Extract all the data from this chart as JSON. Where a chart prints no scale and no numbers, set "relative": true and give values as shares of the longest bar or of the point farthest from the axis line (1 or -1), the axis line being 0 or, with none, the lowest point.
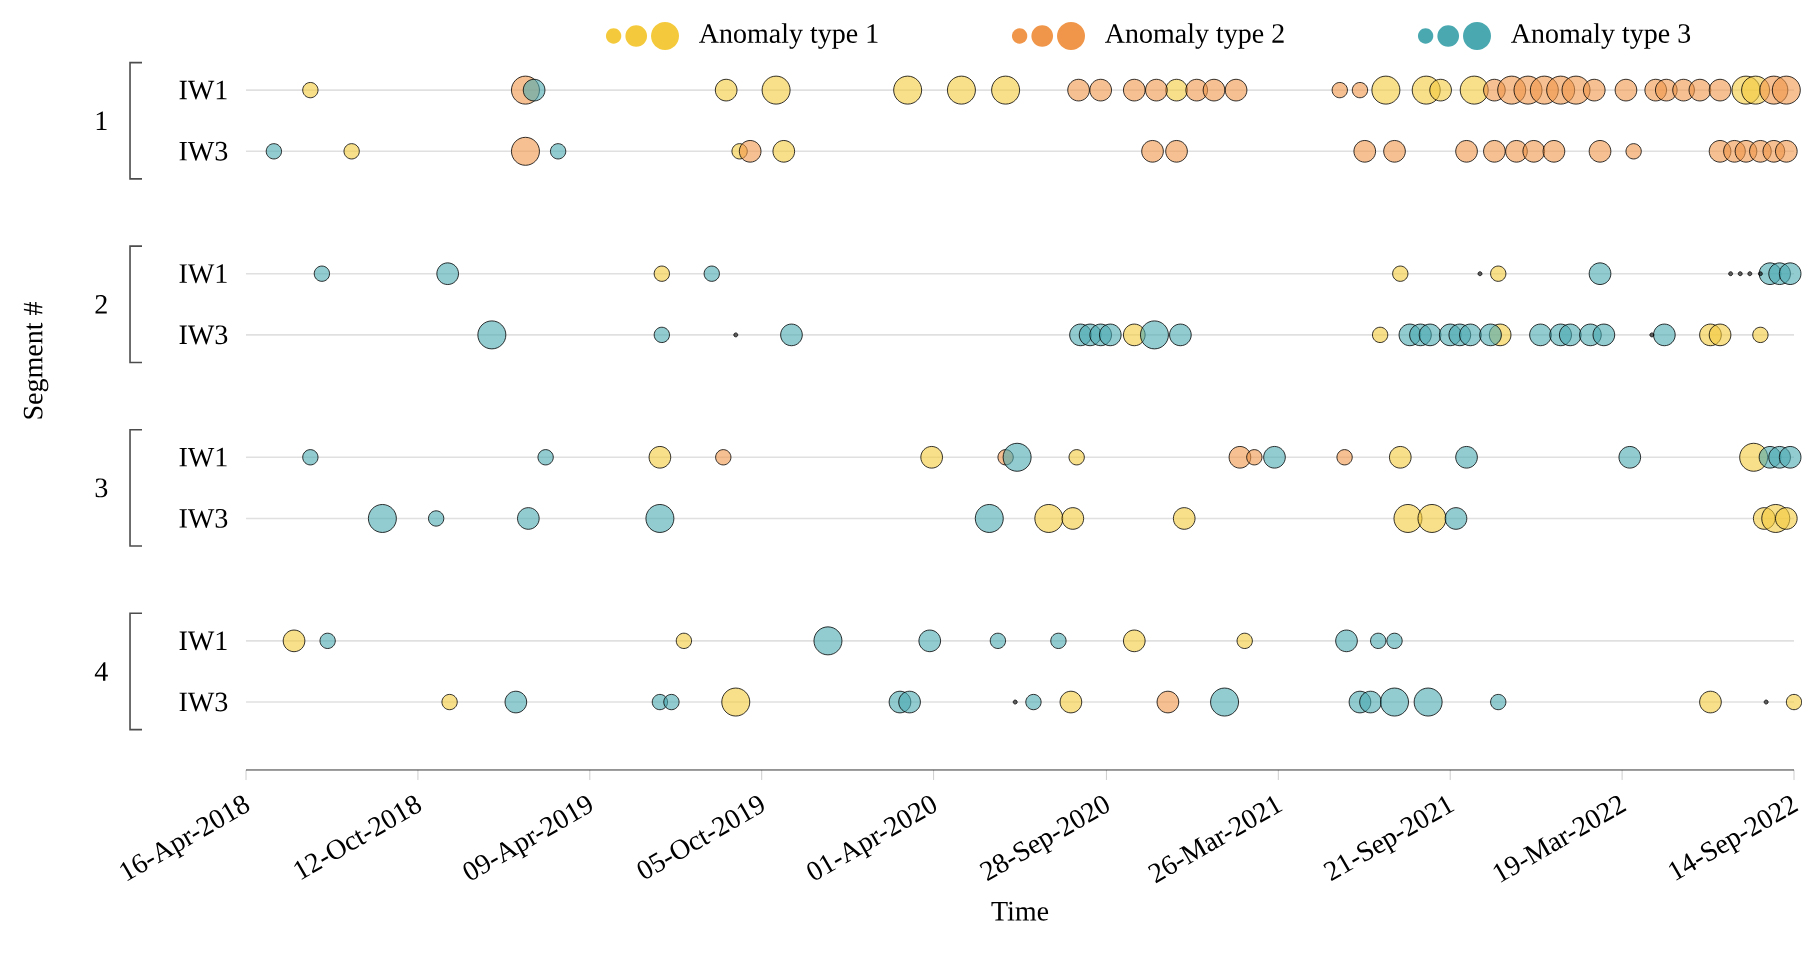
{
  "chart_data": {
    "type": "bubble",
    "relative": true,
    "xlabel": "Time",
    "ylabel": "Segment #",
    "xlim": [
      "2018-04-16",
      "2022-09-14"
    ],
    "xticks": [
      {
        "value": "2018-04-16",
        "label": "16-Apr-2018"
      },
      {
        "value": "2018-10-12",
        "label": "12-Oct-2018"
      },
      {
        "value": "2019-04-09",
        "label": "09-Apr-2019"
      },
      {
        "value": "2019-10-05",
        "label": "05-Oct-2019"
      },
      {
        "value": "2020-04-01",
        "label": "01-Apr-2020"
      },
      {
        "value": "2020-09-28",
        "label": "28-Sep-2020"
      },
      {
        "value": "2021-03-26",
        "label": "26-Mar-2021"
      },
      {
        "value": "2021-09-21",
        "label": "21-Sep-2021"
      },
      {
        "value": "2022-03-19",
        "label": "19-Mar-2022"
      },
      {
        "value": "2022-09-14",
        "label": "14-Sep-2022"
      }
    ],
    "ref_lines": [
      {
        "axis": "y",
        "value": 1,
        "label": "IW1",
        "color": "#e0e0e0"
      },
      {
        "axis": "y",
        "value": 0.9,
        "label": "IW3",
        "color": "#e0e0e0"
      },
      {
        "axis": "y",
        "value": 0.7,
        "label": "IW1",
        "color": "#e0e0e0"
      },
      {
        "axis": "y",
        "value": 0.6,
        "label": "IW3",
        "color": "#e0e0e0"
      },
      {
        "axis": "y",
        "value": 0.4,
        "label": "IW1",
        "color": "#e0e0e0"
      },
      {
        "axis": "y",
        "value": 0.3,
        "label": "IW3",
        "color": "#e0e0e0"
      },
      {
        "axis": "y",
        "value": 0.1,
        "label": "IW1",
        "color": "#e0e0e0"
      },
      {
        "axis": "y",
        "value": 0,
        "label": "IW3",
        "color": "#e0e0e0"
      }
    ],
    "annotations": [
      "1",
      "2",
      "3",
      "4"
    ],
    "legend": "top",
    "series": [
      {
        "name": "Anomaly type 1",
        "color": "#f4ca3c",
        "x": [
          "2018-06-22",
          "2019-08-29",
          "2019-10-20",
          "2020-03-05",
          "2020-04-30",
          "2020-06-15",
          "2020-12-10",
          "2021-07-16",
          "2021-08-27",
          "2021-09-11",
          "2021-10-16",
          "2022-07-26",
          "2022-08-05",
          "2018-08-04",
          "2019-09-12",
          "2019-10-28",
          "2019-06-23",
          "2021-07-31",
          "2021-11-10",
          "2020-10-27",
          "2021-07-10",
          "2021-11-12",
          "2022-06-19",
          "2022-06-29",
          "2022-08-10",
          "2019-06-21",
          "2020-03-30",
          "2020-08-28",
          "2021-07-31",
          "2022-08-03",
          "2020-07-30",
          "2020-08-24",
          "2020-12-18",
          "2021-08-08",
          "2021-09-02",
          "2022-08-14",
          "2022-08-26",
          "2022-09-06",
          "2018-06-05",
          "2019-07-16",
          "2020-10-27",
          "2021-02-19",
          "2018-11-14",
          "2019-09-08",
          "2020-08-22",
          "2022-06-19",
          "2022-09-14"
        ],
        "values": [
          1,
          1,
          1,
          1,
          1,
          1,
          1,
          1,
          1,
          1,
          1,
          1,
          1,
          0.9,
          0.9,
          0.9,
          0.7,
          0.7,
          0.7,
          0.6,
          0.6,
          0.6,
          0.6,
          0.6,
          0.6,
          0.4,
          0.4,
          0.4,
          0.4,
          0.4,
          0.3,
          0.3,
          0.3,
          0.3,
          0.3,
          0.3,
          0.3,
          0.3,
          0.1,
          0.1,
          0.1,
          0.1,
          0,
          0,
          0,
          0,
          0
        ],
        "sizes": [
          0.3,
          0.6,
          1,
          1,
          1,
          1,
          0.6,
          1,
          1,
          0.6,
          1,
          1,
          1,
          0.3,
          0.3,
          0.6,
          0.3,
          0.3,
          0.3,
          0.6,
          0.3,
          0.6,
          0.6,
          0.6,
          0.3,
          0.6,
          0.6,
          0.3,
          0.6,
          1,
          1,
          0.6,
          0.6,
          1,
          1,
          0.6,
          1,
          0.6,
          0.6,
          0.3,
          0.6,
          0.3,
          0.3,
          1,
          0.6,
          0.6,
          0.3
        ]
      },
      {
        "name": "Anomaly type 2",
        "color": "#f0964a",
        "x": [
          "2019-02-01",
          "2020-08-30",
          "2020-09-22",
          "2020-10-27",
          "2020-11-19",
          "2020-12-31",
          "2021-01-18",
          "2021-02-10",
          "2021-05-29",
          "2021-06-19",
          "2021-11-06",
          "2021-11-24",
          "2021-12-11",
          "2021-12-28",
          "2022-01-14",
          "2022-01-30",
          "2022-02-18",
          "2022-03-23",
          "2022-04-23",
          "2022-05-04",
          "2022-05-22",
          "2022-06-08",
          "2022-06-29",
          "2022-08-24",
          "2022-09-06",
          "2019-02-01",
          "2019-09-23",
          "2020-11-15",
          "2020-12-10",
          "2021-06-24",
          "2021-07-25",
          "2021-10-08",
          "2021-11-06",
          "2021-11-29",
          "2021-12-17",
          "2022-01-07",
          "2022-02-24",
          "2022-03-31",
          "2022-06-29",
          "2022-07-14",
          "2022-07-26",
          "2022-08-10",
          "2022-08-24",
          "2022-09-06",
          "2019-08-26",
          "2020-06-15",
          "2021-02-14",
          "2021-03-01",
          "2021-06-03",
          "2020-12-01"
        ],
        "values": [
          1,
          1,
          1,
          1,
          1,
          1,
          1,
          1,
          1,
          1,
          1,
          1,
          1,
          1,
          1,
          1,
          1,
          1,
          1,
          1,
          1,
          1,
          1,
          1,
          1,
          0.9,
          0.9,
          0.9,
          0.9,
          0.9,
          0.9,
          0.9,
          0.9,
          0.9,
          0.9,
          0.9,
          0.9,
          0.9,
          0.9,
          0.9,
          0.9,
          0.9,
          0.9,
          0.9,
          0.4,
          0.4,
          0.4,
          0.4,
          0.4,
          0
        ],
        "sizes": [
          1,
          0.6,
          0.6,
          0.6,
          0.6,
          0.6,
          0.6,
          0.6,
          0.3,
          0.3,
          0.6,
          1,
          1,
          1,
          1,
          1,
          0.6,
          0.6,
          0.6,
          0.6,
          0.6,
          0.6,
          0.6,
          1,
          1,
          1,
          0.6,
          0.6,
          0.6,
          0.6,
          0.6,
          0.6,
          0.6,
          0.6,
          0.6,
          0.6,
          0.6,
          0.3,
          0.6,
          0.6,
          0.6,
          0.6,
          0.6,
          0.6,
          0.3,
          0.3,
          0.6,
          0.3,
          0.3,
          0.6
        ]
      },
      {
        "name": "Anomaly type 3",
        "color": "#4aa8b0",
        "x": [
          "2019-02-10",
          "2018-05-15",
          "2019-03-07",
          "2018-07-04",
          "2018-11-12",
          "2019-08-14",
          "2022-02-24",
          "2022-08-20",
          "2022-08-30",
          "2022-09-10",
          "2018-12-28",
          "2019-06-23",
          "2019-11-05",
          "2020-09-01",
          "2020-09-11",
          "2020-09-22",
          "2020-10-02",
          "2020-11-17",
          "2020-12-14",
          "2021-08-10",
          "2021-08-21",
          "2021-08-31",
          "2021-09-21",
          "2021-10-01",
          "2021-10-12",
          "2021-11-02",
          "2021-12-24",
          "2022-01-14",
          "2022-01-24",
          "2022-02-14",
          "2022-02-28",
          "2022-05-02",
          "2018-06-22",
          "2019-02-22",
          "2020-06-27",
          "2021-03-22",
          "2021-10-08",
          "2022-03-27",
          "2022-08-20",
          "2022-08-30",
          "2022-09-10",
          "2018-09-05",
          "2018-10-31",
          "2019-02-04",
          "2019-06-21",
          "2020-05-29",
          "2021-09-27",
          "2018-07-10",
          "2019-12-13",
          "2020-03-28",
          "2020-06-07",
          "2020-08-09",
          "2021-06-05",
          "2021-07-08",
          "2021-07-25",
          "2019-01-22",
          "2019-06-21",
          "2019-07-03",
          "2020-02-26",
          "2020-03-07",
          "2020-07-14",
          "2021-01-29",
          "2021-06-19",
          "2021-06-30",
          "2021-07-25",
          "2021-08-29",
          "2021-11-10"
        ],
        "values": [
          1,
          0.9,
          0.9,
          0.7,
          0.7,
          0.7,
          0.7,
          0.7,
          0.7,
          0.7,
          0.6,
          0.6,
          0.6,
          0.6,
          0.6,
          0.6,
          0.6,
          0.6,
          0.6,
          0.6,
          0.6,
          0.6,
          0.6,
          0.6,
          0.6,
          0.6,
          0.6,
          0.6,
          0.6,
          0.6,
          0.6,
          0.6,
          0.4,
          0.4,
          0.4,
          0.4,
          0.4,
          0.4,
          0.4,
          0.4,
          0.4,
          0.3,
          0.3,
          0.3,
          0.3,
          0.3,
          0.3,
          0.1,
          0.1,
          0.1,
          0.1,
          0.1,
          0.1,
          0.1,
          0.1,
          0,
          0,
          0,
          0,
          0,
          0,
          0,
          0,
          0,
          0,
          0,
          0
        ],
        "sizes": [
          0.6,
          0.3,
          0.3,
          0.3,
          0.6,
          0.3,
          0.6,
          0.6,
          0.6,
          0.6,
          1,
          0.3,
          0.6,
          0.6,
          0.6,
          0.6,
          0.6,
          1,
          0.6,
          0.6,
          0.6,
          0.6,
          0.6,
          0.6,
          0.6,
          0.6,
          0.6,
          0.6,
          0.6,
          0.6,
          0.6,
          0.6,
          0.3,
          0.3,
          1,
          0.6,
          0.6,
          0.6,
          0.6,
          0.6,
          0.6,
          1,
          0.3,
          0.6,
          1,
          1,
          0.6,
          0.3,
          1,
          0.6,
          0.3,
          0.3,
          0.6,
          0.3,
          0.3,
          0.6,
          0.3,
          0.3,
          0.6,
          0.6,
          0.3,
          1,
          0.6,
          0.6,
          1,
          1,
          0.3
        ]
      },
      {
        "color": "#000000",
        "x": [
          "2019-09-08",
          "2020-06-25",
          "2021-10-22",
          "2022-04-19",
          "2022-07-10",
          "2022-07-20",
          "2022-07-30",
          "2022-08-10",
          "2022-08-16"
        ],
        "values": [
          0.6,
          0,
          0.7,
          0.6,
          0.7,
          0.7,
          0.7,
          0.7,
          0
        ],
        "sizes": [
          0.02,
          0.02,
          0.02,
          0.02,
          0.02,
          0.02,
          0.02,
          0.02,
          0.02
        ]
      }
    ]
  }
}
